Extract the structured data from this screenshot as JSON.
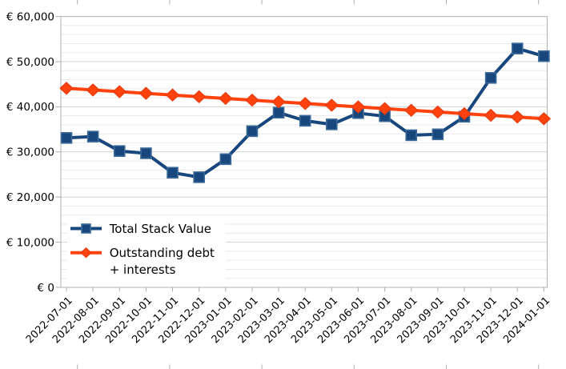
{
  "chart_data": {
    "type": "line",
    "title": "",
    "xlabel": "",
    "ylabel": "",
    "ylim": [
      0,
      60000
    ],
    "y_major_step": 10000,
    "y_minor_step": 2000,
    "grid": true,
    "legend_position": "inside-left",
    "categories": [
      "2022-07-01",
      "2022-08-01",
      "2022-09-01",
      "2022-10-01",
      "2022-11-01",
      "2022-12-01",
      "2023-01-01",
      "2023-02-01",
      "2023-03-01",
      "2023-04-01",
      "2023-05-01",
      "2023-06-01",
      "2023-07-01",
      "2023-08-01",
      "2023-09-01",
      "2023-10-01",
      "2023-11-01",
      "2023-12-01",
      "2024-01-01"
    ],
    "y_ticks": [
      {
        "value": 60000,
        "label": "€ 60,000"
      },
      {
        "value": 50000,
        "label": "€ 50,000"
      },
      {
        "value": 40000,
        "label": "€ 40,000"
      },
      {
        "value": 30000,
        "label": "€ 30,000"
      },
      {
        "value": 20000,
        "label": "€ 20,000"
      },
      {
        "value": 10000,
        "label": "€ 10,000"
      },
      {
        "value": 0,
        "label": "€ 0"
      }
    ],
    "series": [
      {
        "name": "Total Stack Value",
        "marker": "square",
        "color": "#17477d",
        "marker_border": "#3d6a99",
        "values": [
          33100,
          33400,
          30200,
          29700,
          25400,
          24400,
          28400,
          34600,
          38700,
          36900,
          36100,
          38600,
          37900,
          33700,
          33900,
          37800,
          46400,
          52900,
          51200
        ]
      },
      {
        "name": "Outstanding debt + interests",
        "marker": "diamond",
        "color": "#ff420e",
        "marker_border": "#e5390a",
        "values": [
          44100,
          43725,
          43350,
          42975,
          42600,
          42225,
          41850,
          41475,
          41100,
          40725,
          40350,
          39975,
          39600,
          39225,
          38850,
          38475,
          38100,
          37725,
          37350
        ]
      }
    ],
    "legend": {
      "items": [
        {
          "series_index": 0,
          "label_lines": [
            "Total Stack Value"
          ]
        },
        {
          "series_index": 1,
          "label_lines": [
            "Outstanding debt",
            "+ interests"
          ]
        }
      ]
    }
  },
  "colors": {
    "background": "#ffffff",
    "axis": "#b0b0b0",
    "grid_major": "#d2d2d2",
    "grid_minor": "#eaeaea",
    "text": "#000000"
  }
}
